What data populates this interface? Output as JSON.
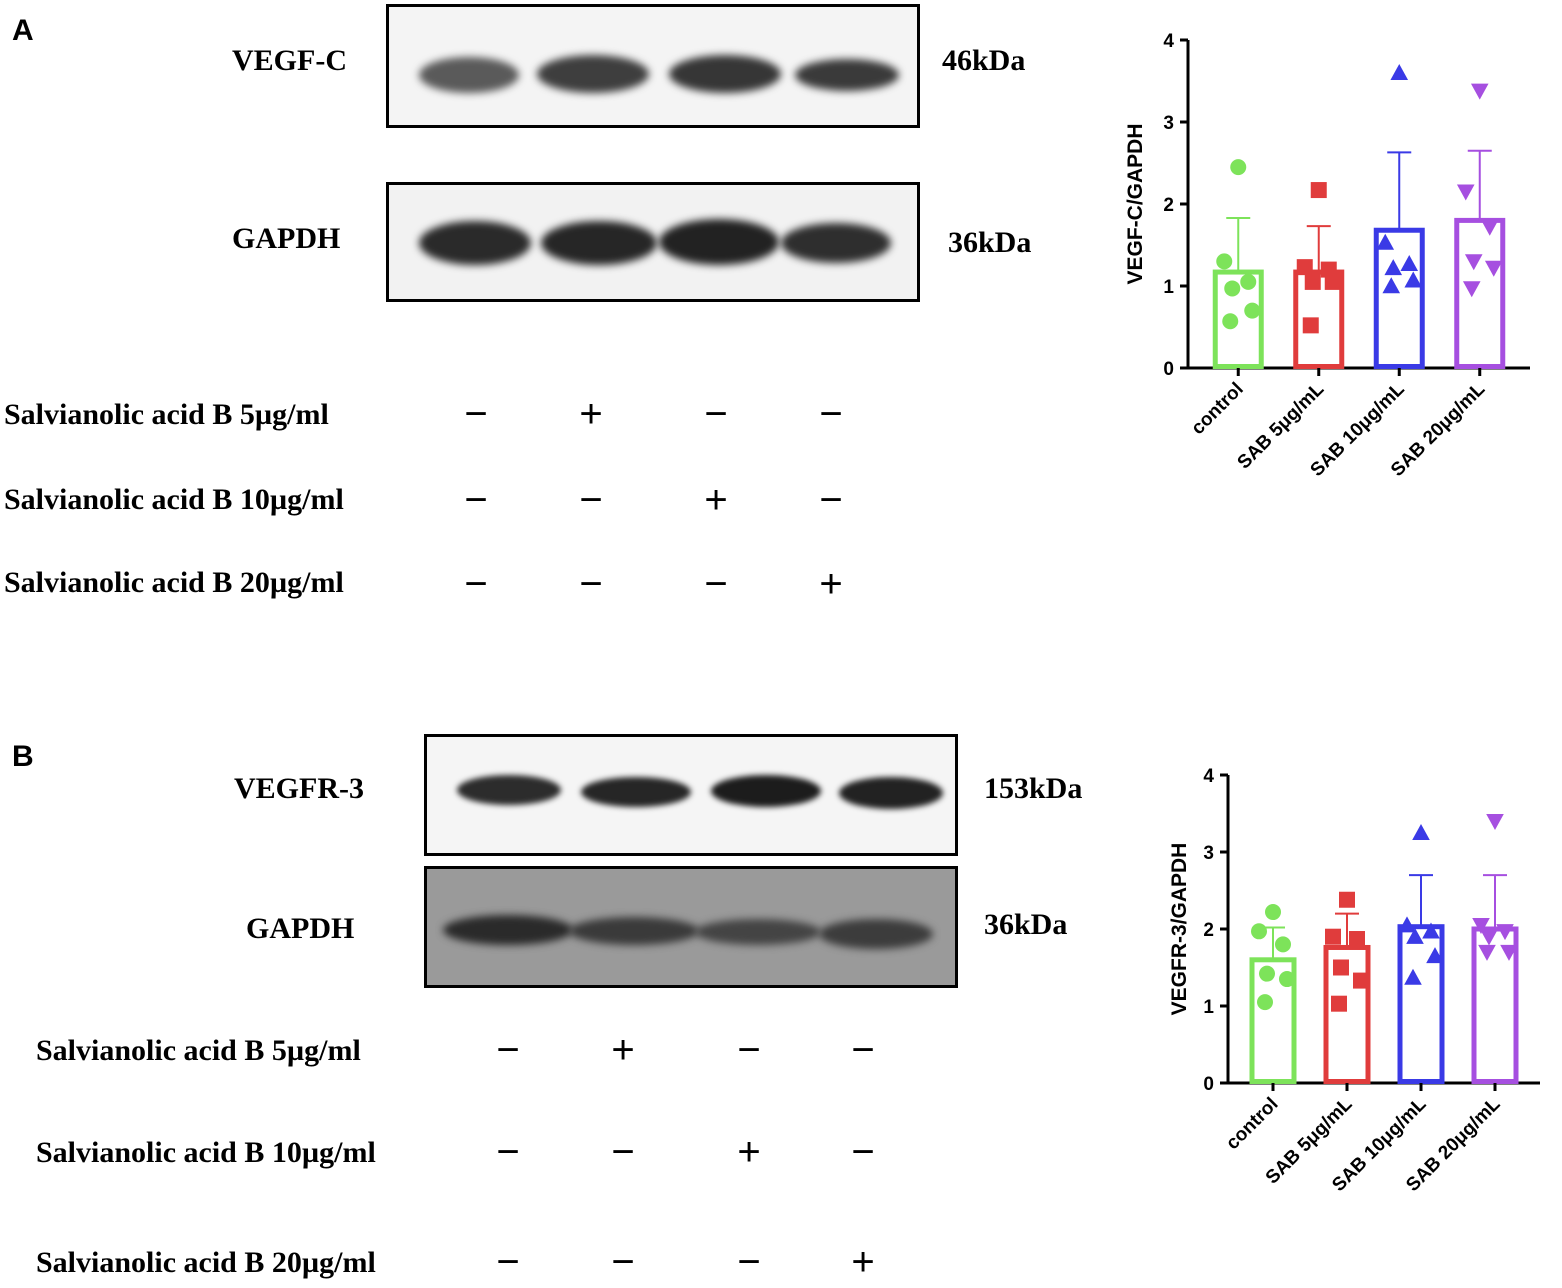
{
  "panels": [
    {
      "letter": "A",
      "blots": [
        {
          "protein": "VEGF-C",
          "size": "46kDa"
        },
        {
          "protein": "GAPDH",
          "size": "36kDa"
        }
      ],
      "treatments": [
        {
          "label": "Salvianolic acid B 5µg/ml",
          "signs": [
            "−",
            "+",
            "−",
            "−"
          ]
        },
        {
          "label": "Salvianolic acid B 10µg/ml",
          "signs": [
            "−",
            "−",
            "+",
            "−"
          ]
        },
        {
          "label": "Salvianolic acid B 20µg/ml",
          "signs": [
            "−",
            "−",
            "−",
            "+"
          ]
        }
      ]
    },
    {
      "letter": "B",
      "blots": [
        {
          "protein": "VEGFR-3",
          "size": "153kDa"
        },
        {
          "protein": "GAPDH",
          "size": "36kDa"
        }
      ],
      "treatments": [
        {
          "label": "Salvianolic acid B 5µg/ml",
          "signs": [
            "−",
            "+",
            "−",
            "−"
          ]
        },
        {
          "label": "Salvianolic acid B 10µg/ml",
          "signs": [
            "−",
            "−",
            "+",
            "−"
          ]
        },
        {
          "label": "Salvianolic acid B 20µg/ml",
          "signs": [
            "−",
            "−",
            "−",
            "+"
          ]
        }
      ]
    }
  ],
  "chart_data": [
    {
      "type": "bar",
      "title": "",
      "xlabel": "",
      "ylabel": "VEGF-C/GAPDH",
      "ylim": [
        0,
        4
      ],
      "yticks": [
        "0",
        "1",
        "2",
        "3",
        "4"
      ],
      "categories": [
        "control",
        "SAB 5μg/mL",
        "SAB 10μg/mL",
        "SAB 20μg/mL"
      ],
      "colors": [
        "#7de35a",
        "#e03c3c",
        "#3a3ae6",
        "#a64fe0"
      ],
      "markers": [
        "circle",
        "square",
        "triangle-up",
        "triangle-down"
      ],
      "values": [
        1.17,
        1.17,
        1.68,
        1.8
      ],
      "error_upper": [
        1.83,
        1.73,
        2.63,
        2.65
      ],
      "points": [
        [
          2.45,
          1.3,
          1.05,
          0.97,
          0.7,
          0.57
        ],
        [
          2.17,
          1.23,
          1.2,
          1.05,
          1.05,
          0.52
        ],
        [
          3.6,
          1.53,
          1.27,
          1.22,
          1.07,
          1.0
        ],
        [
          3.38,
          2.15,
          1.72,
          1.3,
          1.22,
          0.97
        ]
      ]
    },
    {
      "type": "bar",
      "title": "",
      "xlabel": "",
      "ylabel": "VEGFR-3/GAPDH",
      "ylim": [
        0,
        4
      ],
      "yticks": [
        "0",
        "1",
        "2",
        "3",
        "4"
      ],
      "categories": [
        "control",
        "SAB 5μg/mL",
        "SAB 10μg/mL",
        "SAB 20μg/mL"
      ],
      "colors": [
        "#7de35a",
        "#e03c3c",
        "#3a3ae6",
        "#a64fe0"
      ],
      "markers": [
        "circle",
        "square",
        "triangle-up",
        "triangle-down"
      ],
      "values": [
        1.6,
        1.76,
        2.03,
        2.0
      ],
      "error_upper": [
        2.02,
        2.2,
        2.7,
        2.7
      ],
      "points": [
        [
          2.22,
          1.97,
          1.8,
          1.42,
          1.35,
          1.05
        ],
        [
          2.38,
          1.9,
          1.87,
          1.5,
          1.33,
          1.03
        ],
        [
          3.25,
          2.05,
          1.97,
          1.9,
          1.65,
          1.37
        ],
        [
          3.4,
          2.05,
          1.97,
          1.9,
          1.7,
          1.7
        ]
      ]
    }
  ]
}
